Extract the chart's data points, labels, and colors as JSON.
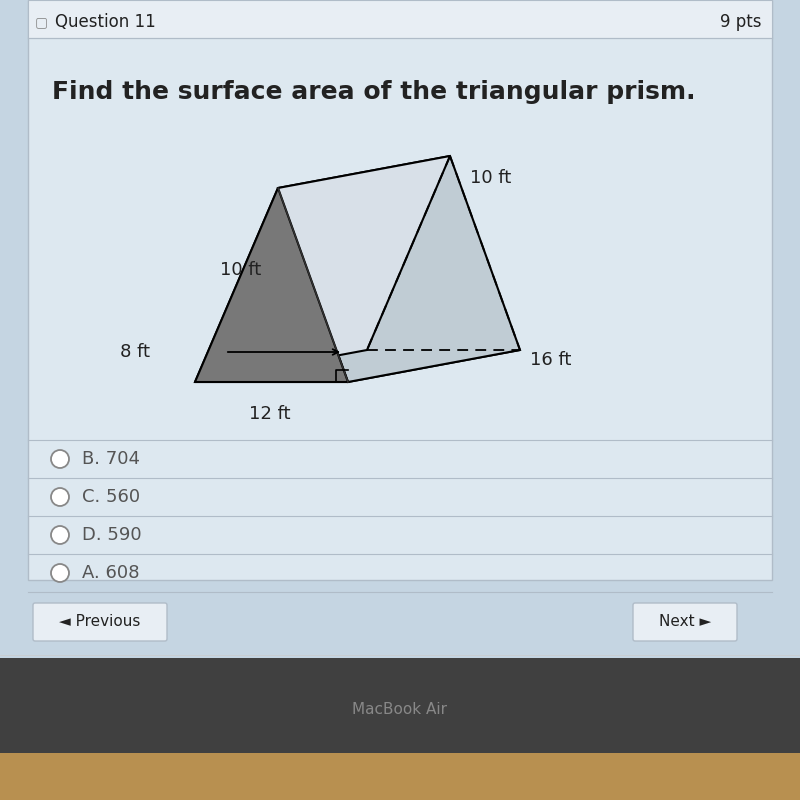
{
  "title": "Find the surface area of the triangular prism.",
  "question_header": "Question 11",
  "pts": "9 pts",
  "choices": [
    "B. 704",
    "C. 560",
    "D. 590",
    "A. 608"
  ],
  "dim_top": "10 ft",
  "dim_left": "10 ft",
  "dim_height": "8 ft",
  "dim_base": "12 ft",
  "dim_depth": "16 ft",
  "bg_color": "#c5d5e2",
  "panel_color": "#dde8f0",
  "panel_inner_color": "#e2ecf4",
  "header_bg": "#e8eef4",
  "divider_color": "#b0bcc8",
  "prism_dark": "#787878",
  "prism_mid": "#909898",
  "prism_light": "#c0ccd4",
  "prism_lightest": "#d8e0e8",
  "nav_btn_color": "#e8eef4",
  "nav_btn_border": "#b0bcc8",
  "footer_dark": "#404040",
  "footer_tan": "#b89050",
  "text_dark": "#222222",
  "text_gray": "#555555"
}
